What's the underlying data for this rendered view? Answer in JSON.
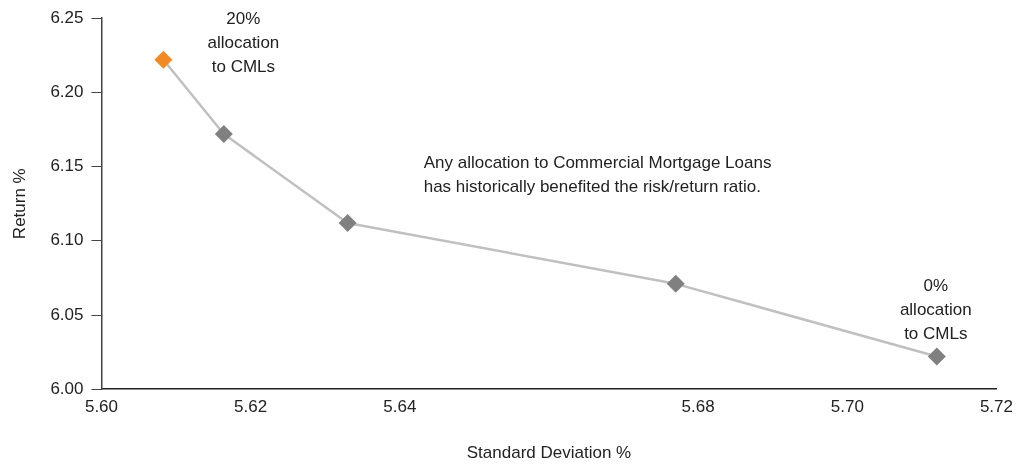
{
  "chart_data": {
    "type": "line",
    "xlabel": "Standard Deviation %",
    "ylabel": "Return %",
    "x": [
      5.6083,
      5.6164,
      5.633,
      5.677,
      5.712
    ],
    "values": [
      6.222,
      6.172,
      6.112,
      6.071,
      6.022
    ],
    "color": "#c0c0c0",
    "colors": [
      "#f28a24",
      "#808080",
      "#808080",
      "#808080",
      "#808080"
    ],
    "marker": "diamond",
    "line_style": "solid",
    "xlim": [
      5.6,
      5.72
    ],
    "xticks": [
      {
        "value": 5.6,
        "label": "5.60"
      },
      5.62,
      5.64,
      5.68,
      {
        "value": 5.7,
        "label": "5.70"
      },
      5.72
    ],
    "ylim": [
      6,
      6.25
    ],
    "yticks": [
      {
        "value": 6,
        "label": "6.00"
      },
      6.05,
      {
        "value": 6.1,
        "label": "6.10"
      },
      6.15,
      {
        "value": 6.2,
        "label": "6.20"
      },
      6.25
    ],
    "grid": false,
    "legend": false,
    "annotations": [
      {
        "text": "20%\nallocation\nto CMLs",
        "x": 5.6083,
        "y": 6.222
      },
      "Any allocation to Commercial Mortgage Loans\nhas historically benefited the risk/return ratio.",
      {
        "text": "0%\nallocation\nto CMLs",
        "x": 5.712,
        "y": 6.022
      }
    ]
  }
}
